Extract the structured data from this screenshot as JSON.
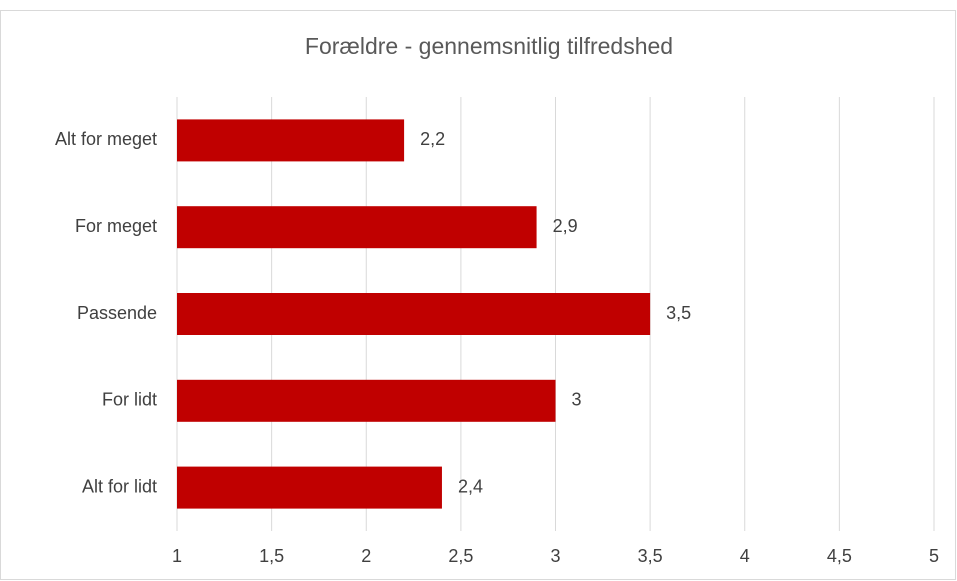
{
  "chart_data": {
    "type": "hbar",
    "title": "Forældre - gennemsnitlig tilfredshed",
    "categories": [
      "Alt for meget",
      "For meget",
      "Passende",
      "For lidt",
      "Alt for lidt"
    ],
    "values": [
      2.2,
      2.9,
      3.5,
      3,
      2.4
    ],
    "value_labels": [
      "2,2",
      "2,9",
      "3,5",
      "3",
      "2,4"
    ],
    "color": "#c00000",
    "xlim": [
      1,
      5
    ],
    "xticks": [
      1,
      {
        "value": 1.5,
        "label": "1,5"
      },
      2,
      {
        "value": 2.5,
        "label": "2,5"
      },
      3,
      {
        "value": 3.5,
        "label": "3,5"
      },
      4,
      {
        "value": 4.5,
        "label": "4,5"
      },
      5
    ],
    "grid": true
  }
}
